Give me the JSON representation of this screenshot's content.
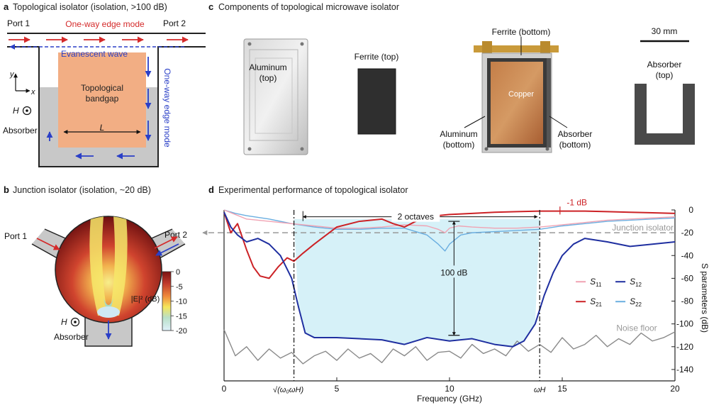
{
  "panels": {
    "a": {
      "letter": "a",
      "title": "Topological isolator (isolation, >100 dB)",
      "port1": "Port 1",
      "port2": "Port 2",
      "one_way_top": "One-way edge mode",
      "evanescent": "Evanescent wave",
      "bandgap_line1": "Topological",
      "bandgap_line2": "bandgap",
      "one_way_side": "One-way edge mode",
      "length_label": "L",
      "h_label": "H",
      "absorber": "Absorber",
      "axis_y": "y",
      "axis_x": "x"
    },
    "b": {
      "letter": "b",
      "title": "Junction isolator (isolation, ~20 dB)",
      "port1": "Port 1",
      "port2": "Port 2",
      "h_label": "H",
      "absorber": "Absorber",
      "colorbar_label": "|E|² (dB)",
      "colorbar_ticks": [
        "0",
        "-5",
        "-10",
        "-15",
        "-20"
      ]
    },
    "c": {
      "letter": "c",
      "title": "Components of topological microwave isolator",
      "aluminum_top": [
        "Aluminum",
        "(top)"
      ],
      "ferrite_top": "Ferrite (top)",
      "ferrite_bottom": "Ferrite (bottom)",
      "copper": "Copper",
      "aluminum_bottom": [
        "Aluminum",
        "(bottom)"
      ],
      "absorber_bottom": [
        "Absorber",
        "(bottom)"
      ],
      "scale": "30 mm",
      "absorber_top": [
        "Absorber",
        "(top)"
      ]
    },
    "d": {
      "letter": "d",
      "title": "Experimental performance of topological isolator"
    }
  },
  "chart_data": {
    "type": "line",
    "xlabel": "Frequency (GHz)",
    "ylabel": "S parameters (dB)",
    "xlim": [
      0,
      20
    ],
    "ylim": [
      -150,
      0
    ],
    "xticks": [
      0,
      5,
      10,
      15,
      20
    ],
    "yticks": [
      0,
      -20,
      -40,
      -60,
      -80,
      -100,
      -120,
      -140
    ],
    "xtick_labels": [
      "0",
      "5",
      "10",
      "15",
      "20"
    ],
    "ytick_labels": [
      "0",
      "-20",
      "-40",
      "-60",
      "-80",
      "-100",
      "-120",
      "-140"
    ],
    "markers": [
      {
        "x": 3.1,
        "label": "√(ω₀ωH)"
      },
      {
        "x": 14.0,
        "label": "ωH"
      }
    ],
    "annotations": {
      "octaves": "2 octaves",
      "isolation": "100 dB",
      "minus1": "-1 dB",
      "junction": "Junction isolator",
      "noise": "Noise floor",
      "junction_level": -20
    },
    "series": [
      {
        "name": "S11",
        "color": "#f0a3b3",
        "x": [
          0,
          0.5,
          1,
          2,
          3,
          4,
          5,
          6,
          7,
          8,
          9,
          9.5,
          9.8,
          10,
          10.4,
          11,
          12,
          13,
          14,
          15,
          16,
          17,
          18,
          19,
          20
        ],
        "y": [
          0,
          -4,
          -8,
          -10,
          -12,
          -14,
          -16,
          -16,
          -15,
          -13,
          -14,
          -17,
          -20,
          -16,
          -14,
          -15,
          -16,
          -16,
          -15,
          -13,
          -11,
          -9,
          -8,
          -7,
          -6
        ]
      },
      {
        "name": "S12",
        "color": "#1f2fa0",
        "x": [
          0,
          0.3,
          0.6,
          1,
          1.5,
          2,
          2.5,
          3,
          3.3,
          3.6,
          4,
          5,
          6,
          7,
          8,
          9,
          10,
          11,
          12,
          12.8,
          13.3,
          13.8,
          14.2,
          14.6,
          15,
          15.5,
          16,
          17,
          18,
          19,
          20
        ],
        "y": [
          -2,
          -15,
          -22,
          -28,
          -25,
          -30,
          -40,
          -60,
          -85,
          -108,
          -112,
          -112,
          -113,
          -114,
          -118,
          -112,
          -115,
          -113,
          -118,
          -120,
          -115,
          -100,
          -75,
          -55,
          -40,
          -30,
          -25,
          -28,
          -32,
          -30,
          -28
        ]
      },
      {
        "name": "S21",
        "color": "#cc2226",
        "x": [
          0,
          0.3,
          0.6,
          1,
          1.3,
          1.6,
          2,
          2.4,
          2.8,
          3.1,
          3.5,
          4,
          5,
          6,
          7,
          7.5,
          8,
          8.5,
          9,
          10,
          11,
          12,
          13,
          14,
          15,
          16,
          17,
          18,
          19,
          20
        ],
        "y": [
          -2,
          -20,
          -12,
          -35,
          -50,
          -58,
          -60,
          -50,
          -42,
          -45,
          -38,
          -30,
          -15,
          -10,
          -8,
          -12,
          -15,
          -10,
          -6,
          -4,
          -3,
          -2,
          -1.5,
          -1,
          -1,
          -1,
          -1.5,
          -2,
          -2.5,
          -3
        ]
      },
      {
        "name": "S22",
        "color": "#6aaee0",
        "x": [
          0,
          0.5,
          1,
          2,
          3,
          4,
          5,
          6,
          7,
          8,
          9,
          9.5,
          9.8,
          10,
          10.5,
          11,
          12,
          13,
          14,
          15,
          16,
          17,
          18,
          19,
          20
        ],
        "y": [
          0,
          -3,
          -5,
          -8,
          -12,
          -15,
          -17,
          -17,
          -16,
          -16,
          -22,
          -30,
          -36,
          -30,
          -22,
          -20,
          -19,
          -18,
          -17,
          -14,
          -12,
          -10,
          -9,
          -8,
          -7
        ]
      },
      {
        "name": "Noise floor",
        "color": "#8a8a8a",
        "x": [
          0,
          0.5,
          1,
          1.5,
          2,
          2.5,
          3,
          3.5,
          4,
          4.5,
          5,
          5.5,
          6,
          6.5,
          7,
          7.5,
          8,
          8.5,
          9,
          9.5,
          10,
          10.5,
          11,
          11.5,
          12,
          12.5,
          13,
          13.5,
          14,
          14.5,
          15,
          15.5,
          16,
          16.5,
          17,
          17.5,
          18,
          18.5,
          19,
          19.5,
          20
        ],
        "y": [
          -105,
          -128,
          -120,
          -132,
          -122,
          -130,
          -125,
          -135,
          -128,
          -124,
          -132,
          -122,
          -130,
          -126,
          -134,
          -122,
          -128,
          -120,
          -132,
          -125,
          -124,
          -130,
          -118,
          -126,
          -122,
          -128,
          -115,
          -124,
          -118,
          -125,
          -112,
          -122,
          -118,
          -110,
          -120,
          -113,
          -118,
          -108,
          -115,
          -112,
          -107
        ]
      }
    ],
    "legend": [
      {
        "label": "S11",
        "base": "S",
        "sub": "11",
        "color": "#f0a3b3"
      },
      {
        "label": "S12",
        "base": "S",
        "sub": "12",
        "color": "#1f2fa0"
      },
      {
        "label": "S21",
        "base": "S",
        "sub": "21",
        "color": "#cc2226"
      },
      {
        "label": "S22",
        "base": "S",
        "sub": "22",
        "color": "#6aaee0"
      }
    ]
  }
}
